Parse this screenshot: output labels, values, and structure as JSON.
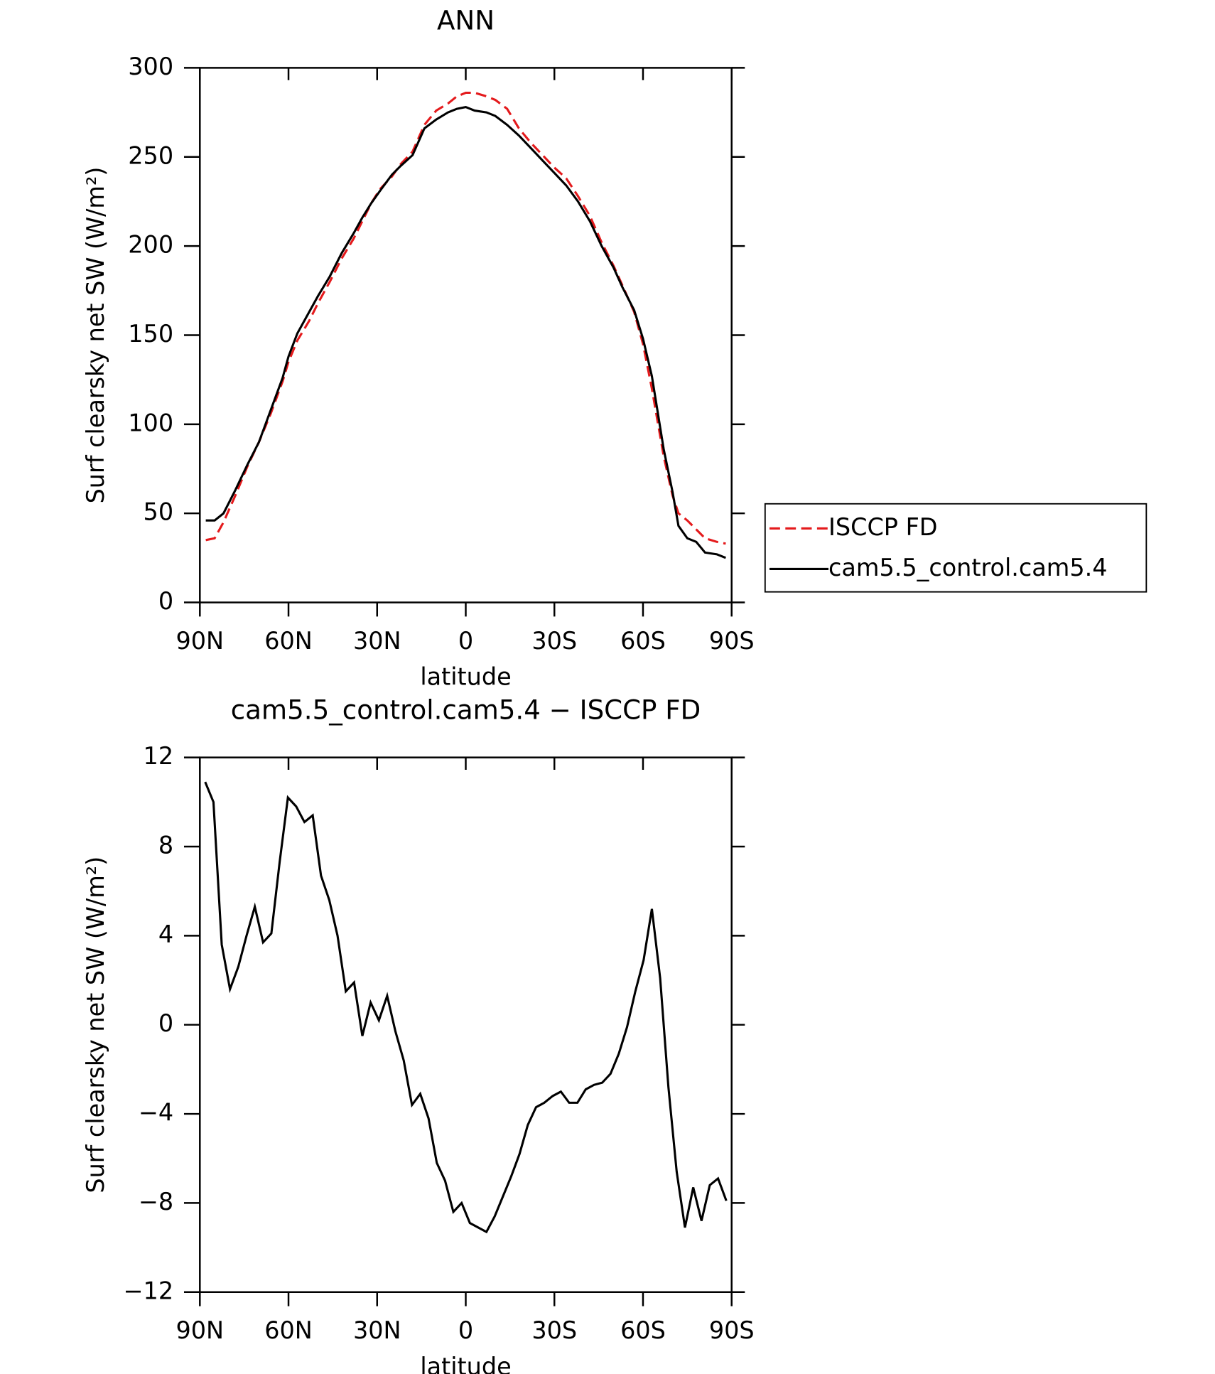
{
  "chart_data": [
    {
      "type": "line",
      "title": "ANN",
      "xlabel": "latitude",
      "ylabel": "Surf clearsky net SW (W/m²)",
      "x": [
        88,
        85,
        82,
        78,
        74,
        70,
        66,
        62,
        60,
        57,
        53,
        50,
        46,
        42,
        38,
        35,
        32,
        29,
        25,
        22,
        18,
        14,
        10,
        6,
        3,
        0,
        -3,
        -7,
        -10,
        -14,
        -18,
        -22,
        -26,
        -30,
        -34,
        -38,
        -42,
        -46,
        -50,
        -53,
        -57,
        -60,
        -63,
        -67,
        -70,
        -72,
        -75,
        -78,
        -81,
        -85,
        -88
      ],
      "series": [
        {
          "name": "ISCCP FD",
          "color": "#e41a1c",
          "dash": true,
          "values": [
            35,
            36,
            45,
            60,
            76,
            90,
            106,
            124,
            135,
            147,
            158,
            168,
            180,
            193,
            204,
            214,
            224,
            232,
            239,
            246,
            253,
            268,
            276,
            280,
            284,
            286,
            286,
            284,
            282,
            277,
            266,
            258,
            251,
            244,
            238,
            228,
            217,
            202,
            189,
            178,
            163,
            145,
            120,
            82,
            60,
            50,
            46,
            41,
            36,
            34,
            33
          ]
        },
        {
          "name": "cam5.5_control.cam5.4",
          "color": "#000000",
          "dash": false,
          "values": [
            46,
            46,
            50,
            63,
            77,
            90,
            108,
            126,
            138,
            151,
            163,
            172,
            183,
            196,
            207,
            216,
            224,
            231,
            240,
            245,
            251,
            266,
            271,
            275,
            277,
            278,
            276,
            275,
            273,
            268,
            262,
            255,
            248,
            241,
            234,
            225,
            214,
            200,
            188,
            177,
            164,
            148,
            127,
            86,
            62,
            43,
            36,
            34,
            28,
            27,
            25
          ]
        }
      ],
      "xlim": [
        90,
        -90
      ],
      "xticks": [
        {
          "value": 90,
          "label": "90N"
        },
        {
          "value": 60,
          "label": "60N"
        },
        {
          "value": 30,
          "label": "30N"
        },
        0,
        {
          "value": -30,
          "label": "30S"
        },
        {
          "value": -60,
          "label": "60S"
        },
        {
          "value": -90,
          "label": "90S"
        }
      ],
      "ylim": [
        0,
        300
      ],
      "yticks": [
        0,
        50,
        100,
        150,
        200,
        250,
        300
      ],
      "legend": "right"
    },
    {
      "type": "line",
      "title": "cam5.5_control.cam5.4 − ISCCP FD",
      "xlabel": "latitude",
      "ylabel": "Surf clearsky net SW (W/m²)",
      "x": [
        88.2,
        85.4,
        82.6,
        79.8,
        77.0,
        74.2,
        71.4,
        68.6,
        65.8,
        63.0,
        60.2,
        57.4,
        54.6,
        51.8,
        49.0,
        46.2,
        43.4,
        40.6,
        37.8,
        35.0,
        32.2,
        29.4,
        26.6,
        23.8,
        21.0,
        18.2,
        15.4,
        12.6,
        9.8,
        7.0,
        4.2,
        1.4,
        -1.4,
        -4.2,
        -7.0,
        -9.8,
        -12.6,
        -15.4,
        -18.2,
        -21.0,
        -23.8,
        -26.6,
        -29.4,
        -32.2,
        -35.0,
        -37.8,
        -40.6,
        -43.4,
        -46.2,
        -49.0,
        -51.8,
        -54.6,
        -57.4,
        -60.2,
        -63.0,
        -65.8,
        -68.6,
        -71.4,
        -74.2,
        -77.0,
        -79.8,
        -82.6,
        -85.4,
        -88.2
      ],
      "series": [
        {
          "color": "#000000",
          "dash": false,
          "values": [
            10.9,
            10.0,
            3.6,
            1.6,
            2.6,
            4.0,
            5.3,
            3.7,
            4.1,
            7.3,
            10.2,
            9.8,
            9.1,
            9.4,
            6.7,
            5.6,
            4.0,
            1.5,
            1.9,
            -0.5,
            1.0,
            0.2,
            1.3,
            -0.3,
            -1.6,
            -3.6,
            -3.1,
            -4.2,
            -6.2,
            -7.0,
            -8.4,
            -8.0,
            -8.9,
            -9.1,
            -9.3,
            -8.6,
            -7.7,
            -6.8,
            -5.8,
            -4.5,
            -3.7,
            -3.5,
            -3.2,
            -3.0,
            -3.5,
            -3.5,
            -2.9,
            -2.7,
            -2.6,
            -2.2,
            -1.3,
            -0.1,
            1.5,
            2.9,
            5.2,
            2.1,
            -2.8,
            -6.6,
            -9.1,
            -7.3,
            -8.8,
            -7.2,
            -6.9,
            -7.9
          ]
        }
      ],
      "xlim": [
        90,
        -90
      ],
      "xticks": [
        {
          "value": 90,
          "label": "90N"
        },
        {
          "value": 60,
          "label": "60N"
        },
        {
          "value": 30,
          "label": "30N"
        },
        0,
        {
          "value": -30,
          "label": "30S"
        },
        {
          "value": -60,
          "label": "60S"
        },
        {
          "value": -90,
          "label": "90S"
        }
      ],
      "ylim": [
        -12,
        12
      ],
      "yticks": [
        {
          "value": -12,
          "label": "−12"
        },
        {
          "value": -8,
          "label": "−8"
        },
        {
          "value": -4,
          "label": "−4"
        },
        0,
        4,
        8,
        12
      ]
    }
  ]
}
